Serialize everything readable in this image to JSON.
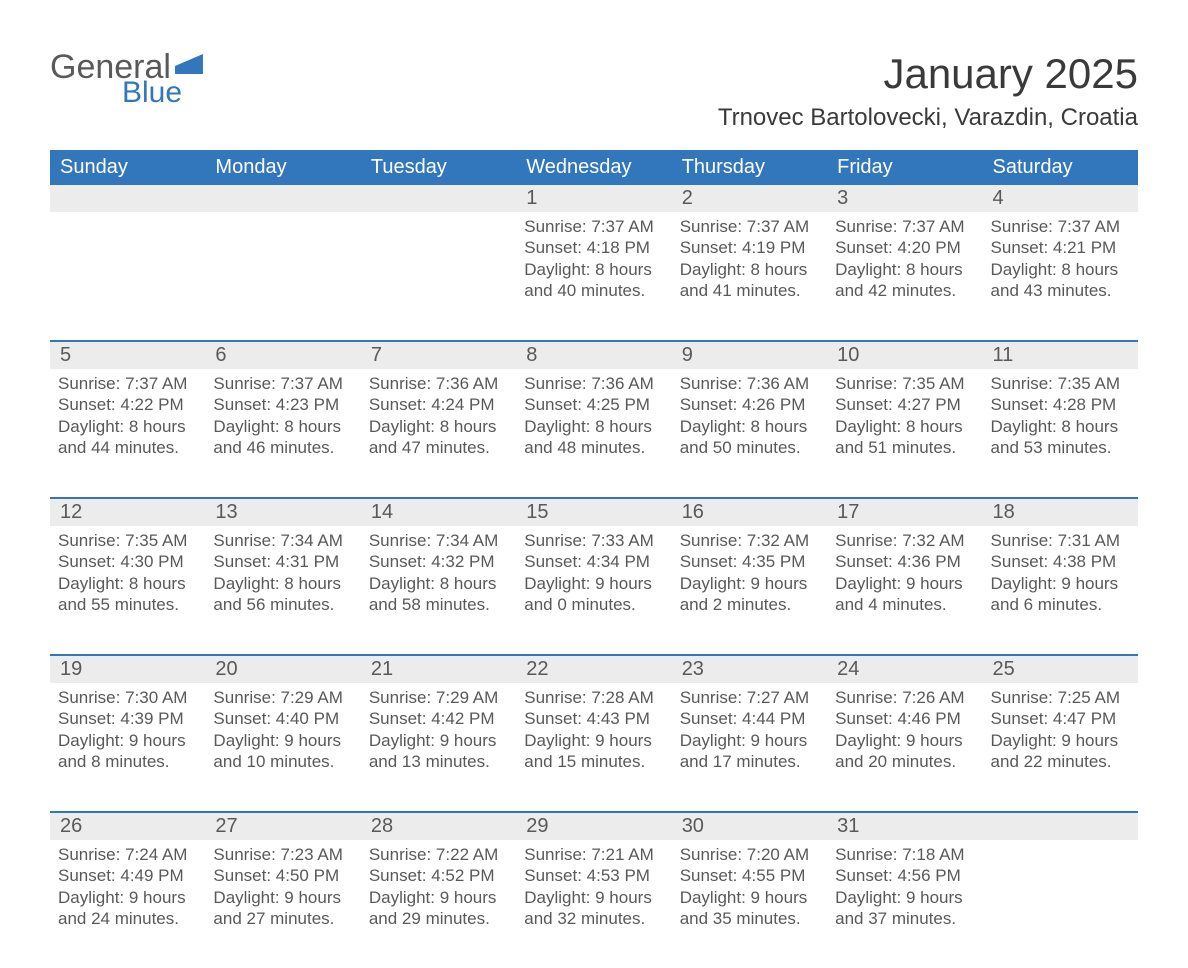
{
  "colors": {
    "brand_blue": "#3277bc",
    "text_gray": "#595959",
    "header_text": "#ffffff",
    "daynum_bg": "#ececec",
    "background": "#ffffff",
    "title_text": "#3a3a3a"
  },
  "typography": {
    "month_title_fontsize": 42,
    "location_fontsize": 24,
    "dayhead_fontsize": 20,
    "daynum_fontsize": 20,
    "cell_fontsize": 17,
    "logo_fontsize": 34
  },
  "logo": {
    "primary": "General",
    "secondary": "Blue"
  },
  "title": "January 2025",
  "location": "Trnovec Bartolovecki, Varazdin, Croatia",
  "day_headers": [
    "Sunday",
    "Monday",
    "Tuesday",
    "Wednesday",
    "Thursday",
    "Friday",
    "Saturday"
  ],
  "weeks": [
    [
      {
        "day": "",
        "lines": []
      },
      {
        "day": "",
        "lines": []
      },
      {
        "day": "",
        "lines": []
      },
      {
        "day": "1",
        "lines": [
          "Sunrise: 7:37 AM",
          "Sunset: 4:18 PM",
          "Daylight: 8 hours",
          "and 40 minutes."
        ]
      },
      {
        "day": "2",
        "lines": [
          "Sunrise: 7:37 AM",
          "Sunset: 4:19 PM",
          "Daylight: 8 hours",
          "and 41 minutes."
        ]
      },
      {
        "day": "3",
        "lines": [
          "Sunrise: 7:37 AM",
          "Sunset: 4:20 PM",
          "Daylight: 8 hours",
          "and 42 minutes."
        ]
      },
      {
        "day": "4",
        "lines": [
          "Sunrise: 7:37 AM",
          "Sunset: 4:21 PM",
          "Daylight: 8 hours",
          "and 43 minutes."
        ]
      }
    ],
    [
      {
        "day": "5",
        "lines": [
          "Sunrise: 7:37 AM",
          "Sunset: 4:22 PM",
          "Daylight: 8 hours",
          "and 44 minutes."
        ]
      },
      {
        "day": "6",
        "lines": [
          "Sunrise: 7:37 AM",
          "Sunset: 4:23 PM",
          "Daylight: 8 hours",
          "and 46 minutes."
        ]
      },
      {
        "day": "7",
        "lines": [
          "Sunrise: 7:36 AM",
          "Sunset: 4:24 PM",
          "Daylight: 8 hours",
          "and 47 minutes."
        ]
      },
      {
        "day": "8",
        "lines": [
          "Sunrise: 7:36 AM",
          "Sunset: 4:25 PM",
          "Daylight: 8 hours",
          "and 48 minutes."
        ]
      },
      {
        "day": "9",
        "lines": [
          "Sunrise: 7:36 AM",
          "Sunset: 4:26 PM",
          "Daylight: 8 hours",
          "and 50 minutes."
        ]
      },
      {
        "day": "10",
        "lines": [
          "Sunrise: 7:35 AM",
          "Sunset: 4:27 PM",
          "Daylight: 8 hours",
          "and 51 minutes."
        ]
      },
      {
        "day": "11",
        "lines": [
          "Sunrise: 7:35 AM",
          "Sunset: 4:28 PM",
          "Daylight: 8 hours",
          "and 53 minutes."
        ]
      }
    ],
    [
      {
        "day": "12",
        "lines": [
          "Sunrise: 7:35 AM",
          "Sunset: 4:30 PM",
          "Daylight: 8 hours",
          "and 55 minutes."
        ]
      },
      {
        "day": "13",
        "lines": [
          "Sunrise: 7:34 AM",
          "Sunset: 4:31 PM",
          "Daylight: 8 hours",
          "and 56 minutes."
        ]
      },
      {
        "day": "14",
        "lines": [
          "Sunrise: 7:34 AM",
          "Sunset: 4:32 PM",
          "Daylight: 8 hours",
          "and 58 minutes."
        ]
      },
      {
        "day": "15",
        "lines": [
          "Sunrise: 7:33 AM",
          "Sunset: 4:34 PM",
          "Daylight: 9 hours",
          "and 0 minutes."
        ]
      },
      {
        "day": "16",
        "lines": [
          "Sunrise: 7:32 AM",
          "Sunset: 4:35 PM",
          "Daylight: 9 hours",
          "and 2 minutes."
        ]
      },
      {
        "day": "17",
        "lines": [
          "Sunrise: 7:32 AM",
          "Sunset: 4:36 PM",
          "Daylight: 9 hours",
          "and 4 minutes."
        ]
      },
      {
        "day": "18",
        "lines": [
          "Sunrise: 7:31 AM",
          "Sunset: 4:38 PM",
          "Daylight: 9 hours",
          "and 6 minutes."
        ]
      }
    ],
    [
      {
        "day": "19",
        "lines": [
          "Sunrise: 7:30 AM",
          "Sunset: 4:39 PM",
          "Daylight: 9 hours",
          "and 8 minutes."
        ]
      },
      {
        "day": "20",
        "lines": [
          "Sunrise: 7:29 AM",
          "Sunset: 4:40 PM",
          "Daylight: 9 hours",
          "and 10 minutes."
        ]
      },
      {
        "day": "21",
        "lines": [
          "Sunrise: 7:29 AM",
          "Sunset: 4:42 PM",
          "Daylight: 9 hours",
          "and 13 minutes."
        ]
      },
      {
        "day": "22",
        "lines": [
          "Sunrise: 7:28 AM",
          "Sunset: 4:43 PM",
          "Daylight: 9 hours",
          "and 15 minutes."
        ]
      },
      {
        "day": "23",
        "lines": [
          "Sunrise: 7:27 AM",
          "Sunset: 4:44 PM",
          "Daylight: 9 hours",
          "and 17 minutes."
        ]
      },
      {
        "day": "24",
        "lines": [
          "Sunrise: 7:26 AM",
          "Sunset: 4:46 PM",
          "Daylight: 9 hours",
          "and 20 minutes."
        ]
      },
      {
        "day": "25",
        "lines": [
          "Sunrise: 7:25 AM",
          "Sunset: 4:47 PM",
          "Daylight: 9 hours",
          "and 22 minutes."
        ]
      }
    ],
    [
      {
        "day": "26",
        "lines": [
          "Sunrise: 7:24 AM",
          "Sunset: 4:49 PM",
          "Daylight: 9 hours",
          "and 24 minutes."
        ]
      },
      {
        "day": "27",
        "lines": [
          "Sunrise: 7:23 AM",
          "Sunset: 4:50 PM",
          "Daylight: 9 hours",
          "and 27 minutes."
        ]
      },
      {
        "day": "28",
        "lines": [
          "Sunrise: 7:22 AM",
          "Sunset: 4:52 PM",
          "Daylight: 9 hours",
          "and 29 minutes."
        ]
      },
      {
        "day": "29",
        "lines": [
          "Sunrise: 7:21 AM",
          "Sunset: 4:53 PM",
          "Daylight: 9 hours",
          "and 32 minutes."
        ]
      },
      {
        "day": "30",
        "lines": [
          "Sunrise: 7:20 AM",
          "Sunset: 4:55 PM",
          "Daylight: 9 hours",
          "and 35 minutes."
        ]
      },
      {
        "day": "31",
        "lines": [
          "Sunrise: 7:18 AM",
          "Sunset: 4:56 PM",
          "Daylight: 9 hours",
          "and 37 minutes."
        ]
      },
      {
        "day": "",
        "lines": []
      }
    ]
  ]
}
